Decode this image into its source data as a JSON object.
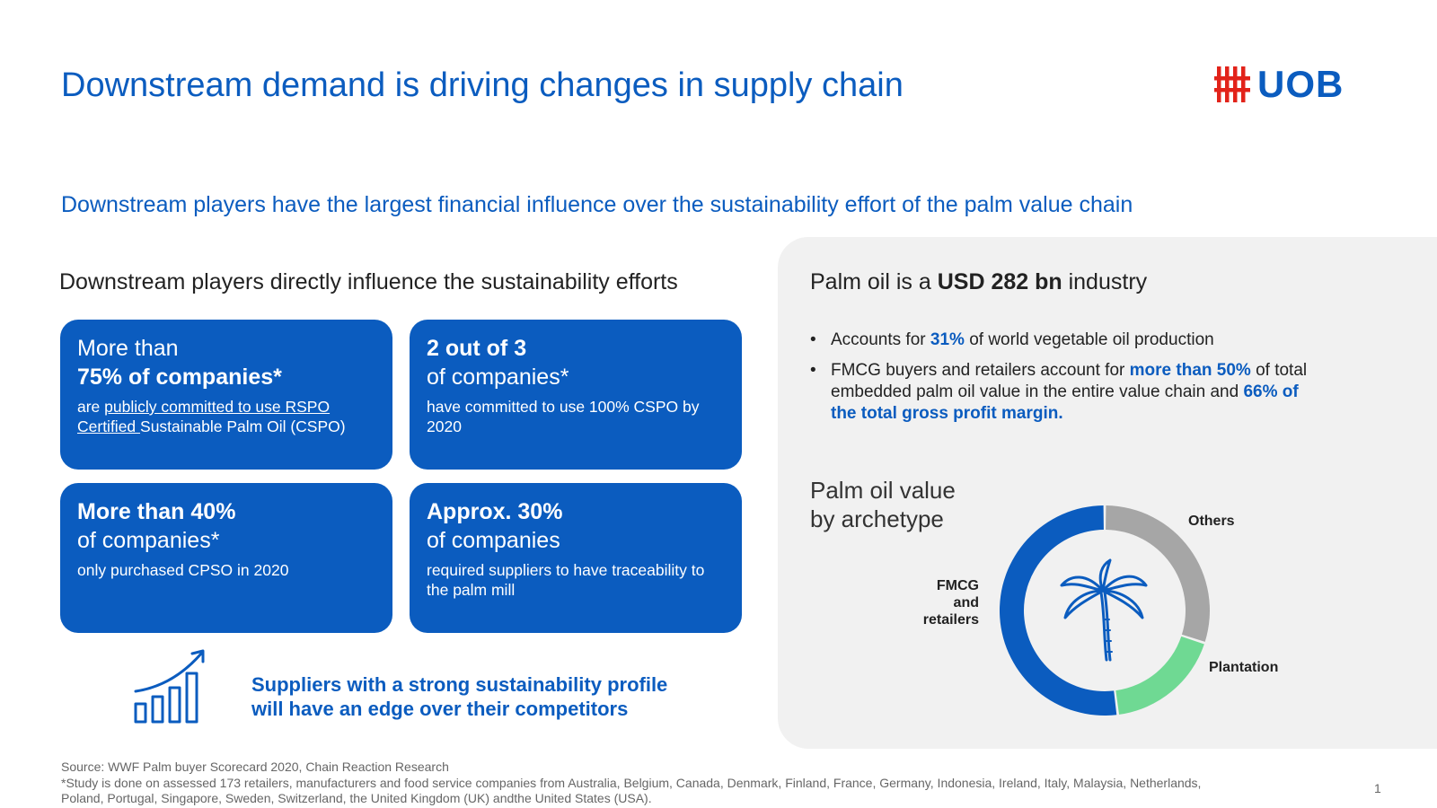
{
  "title": "Downstream demand is driving changes in supply chain",
  "logo": {
    "text": "UOB",
    "icon": "uob-logo-icon",
    "color": "#e2231a"
  },
  "subtitle": "Downstream players have the largest financial influence over the sustainability effort of the palm value chain",
  "left": {
    "heading": "Downstream players directly influence the sustainability efforts",
    "cards": [
      {
        "line1": "More than",
        "line2": "75% of companies*",
        "desc_pre": "are ",
        "desc_link": "publicly committed to use RSPO Certified ",
        "desc_post": "Sustainable Palm Oil (CSPO)"
      },
      {
        "line1": "2 out of 3",
        "line2": "of companies*",
        "desc": "have committed to use 100% CSPO by 2020"
      },
      {
        "line1": "More than 40%",
        "line2": "of companies*",
        "desc": "only purchased CPSO in 2020"
      },
      {
        "line1": "Approx. 30%",
        "line2": "of companies",
        "desc": "required suppliers to have traceability to the palm mill"
      }
    ],
    "suppliers_line1": "Suppliers with a strong sustainability profile",
    "suppliers_line2": "will have an edge over their competitors",
    "growth_icon": "growth-chart-icon"
  },
  "right": {
    "heading_pre": "Palm oil is a ",
    "heading_bold": "USD 282 bn",
    "heading_post": " industry",
    "bullet1_pre": "Accounts for ",
    "bullet1_hl": "31%",
    "bullet1_post": " of world vegetable oil production",
    "bullet2_pre": "FMCG buyers and retailers account for ",
    "bullet2_hl1": "more than 50%",
    "bullet2_mid": " of total embedded palm oil value in the entire value chain and ",
    "bullet2_hl2": "66% of the total gross profit margin.",
    "value_heading_line1": "Palm oil value",
    "value_heading_line2": "by archetype",
    "center_icon": "palm-tree-icon"
  },
  "chart_data": {
    "type": "pie",
    "donut": true,
    "series": [
      {
        "name": "Others",
        "value": 30,
        "color": "#a6a6a6"
      },
      {
        "name": "Plantation",
        "value": 18,
        "color": "#6fd993"
      },
      {
        "name": "FMCG and retailers",
        "value": 52,
        "color": "#0b5cbf"
      }
    ],
    "labels": {
      "others": "Others",
      "plantation": "Plantation",
      "fmcg_1": "FMCG",
      "fmcg_2": "and",
      "fmcg_3": "retailers"
    }
  },
  "footer": {
    "source": "Source: WWF Palm buyer Scorecard 2020, Chain Reaction Research",
    "note_line1": "*Study is done on assessed 173 retailers, manufacturers and food service companies from Australia, Belgium, Canada, Denmark, Finland, France, Germany, Indonesia, Ireland, Italy, Malaysia, Netherlands,",
    "note_line2": "Poland, Portugal, Singapore, Sweden, Switzerland, the United Kingdom (UK) andthe United States (USA).",
    "page": "1"
  },
  "colors": {
    "brand_blue": "#0b5cbf",
    "panel_bg": "#f1f1f1"
  }
}
